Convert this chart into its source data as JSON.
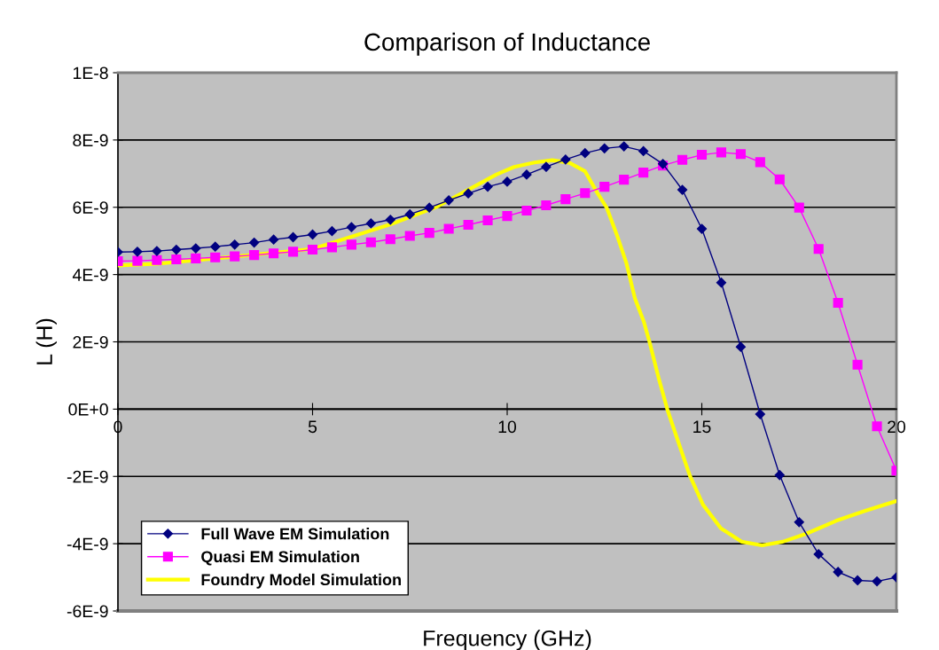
{
  "chart_data": {
    "type": "line",
    "title": "Comparison of Inductance",
    "xlabel": "Frequency (GHz)",
    "ylabel": "L (H)",
    "xlim": [
      0,
      20
    ],
    "xticks": [
      0,
      5,
      10,
      15,
      20
    ],
    "ylim": [
      -6e-09,
      1e-08
    ],
    "yticks": [
      {
        "value": -6e-09,
        "label": "-6E-9"
      },
      {
        "value": -4e-09,
        "label": "-4E-9"
      },
      {
        "value": -2e-09,
        "label": "-2E-9"
      },
      {
        "value": 0,
        "label": "0E+0"
      },
      {
        "value": 2e-09,
        "label": "2E-9"
      },
      {
        "value": 4e-09,
        "label": "4E-9"
      },
      {
        "value": 6e-09,
        "label": "6E-9"
      },
      {
        "value": 8e-09,
        "label": "8E-9"
      },
      {
        "value": 1e-08,
        "label": "1E-8"
      }
    ],
    "grid": "y",
    "legend": "bottom left",
    "series": [
      {
        "name": "Full Wave EM Simulation",
        "color": "#000080",
        "marker": "diamond",
        "x": [
          0,
          0.5,
          1,
          1.5,
          2,
          2.5,
          3,
          3.5,
          4,
          4.5,
          5,
          5.5,
          6,
          6.5,
          7,
          7.5,
          8,
          8.5,
          9,
          9.5,
          10,
          10.5,
          11,
          11.5,
          12,
          12.5,
          13,
          13.5,
          14,
          14.5,
          15,
          15.5,
          16,
          16.5,
          17,
          17.5,
          18,
          18.5,
          19,
          19.5,
          20
        ],
        "values": [
          4.67e-09,
          4.68e-09,
          4.7e-09,
          4.74e-09,
          4.78e-09,
          4.83e-09,
          4.89e-09,
          4.95e-09,
          5.04e-09,
          5.11e-09,
          5.19e-09,
          5.29e-09,
          5.41e-09,
          5.52e-09,
          5.63e-09,
          5.79e-09,
          5.99e-09,
          6.21e-09,
          6.41e-09,
          6.61e-09,
          6.76e-09,
          6.97e-09,
          7.2e-09,
          7.42e-09,
          7.61e-09,
          7.75e-09,
          7.81e-09,
          7.67e-09,
          7.29e-09,
          6.52e-09,
          5.36e-09,
          3.76e-09,
          1.85e-09,
          -1.5e-10,
          -1.96e-09,
          -3.36e-09,
          -4.31e-09,
          -4.84e-09,
          -5.09e-09,
          -5.12e-09,
          -5e-09
        ]
      },
      {
        "name": "Quasi EM Simulation",
        "color": "#ff00ff",
        "marker": "square",
        "x": [
          0,
          0.5,
          1,
          1.5,
          2,
          2.5,
          3,
          3.5,
          4,
          4.5,
          5,
          5.5,
          6,
          6.5,
          7,
          7.5,
          8,
          8.5,
          9,
          9.5,
          10,
          10.5,
          11,
          11.5,
          12,
          12.5,
          13,
          13.5,
          14,
          14.5,
          15,
          15.5,
          16,
          16.5,
          17,
          17.5,
          18,
          18.5,
          19,
          19.5,
          20
        ],
        "values": [
          4.4e-09,
          4.41e-09,
          4.43e-09,
          4.45e-09,
          4.48e-09,
          4.51e-09,
          4.54e-09,
          4.58e-09,
          4.63e-09,
          4.68e-09,
          4.74e-09,
          4.81e-09,
          4.89e-09,
          4.96e-09,
          5.05e-09,
          5.15e-09,
          5.24e-09,
          5.36e-09,
          5.48e-09,
          5.61e-09,
          5.74e-09,
          5.9e-09,
          6.06e-09,
          6.24e-09,
          6.42e-09,
          6.61e-09,
          6.82e-09,
          7.03e-09,
          7.24e-09,
          7.41e-09,
          7.56e-09,
          7.63e-09,
          7.58e-09,
          7.34e-09,
          6.83e-09,
          5.99e-09,
          4.76e-09,
          3.16e-09,
          1.32e-09,
          -5.1e-10,
          -1.83e-09
        ]
      },
      {
        "name": "Foundry Model Simulation",
        "color": "#ffff00",
        "marker": "none",
        "x": [
          0,
          1,
          2.5,
          5,
          7,
          8.2,
          9.73,
          10.18,
          10.7,
          11.16,
          11.6,
          12.0,
          12.3,
          12.56,
          12.83,
          13.06,
          13.28,
          13.51,
          13.66,
          13.89,
          14.12,
          14.43,
          14.69,
          15.03,
          15.49,
          16.02,
          16.55,
          17.08,
          17.69,
          18.45,
          19.2,
          20
        ],
        "values": [
          4.27e-09,
          4.32e-09,
          4.48e-09,
          4.76e-09,
          5.49e-09,
          6.02e-09,
          6.98e-09,
          7.2e-09,
          7.33e-09,
          7.4e-09,
          7.32e-09,
          7.07e-09,
          6.46e-09,
          5.98e-09,
          5.14e-09,
          4.35e-09,
          3.3e-09,
          2.6e-09,
          1.98e-09,
          9.3e-10,
          -3e-11,
          -1.09e-09,
          -1.97e-09,
          -2.84e-09,
          -3.54e-09,
          -3.94e-09,
          -4.05e-09,
          -3.94e-09,
          -3.7e-09,
          -3.32e-09,
          -3.02e-09,
          -2.73e-09
        ]
      }
    ]
  }
}
